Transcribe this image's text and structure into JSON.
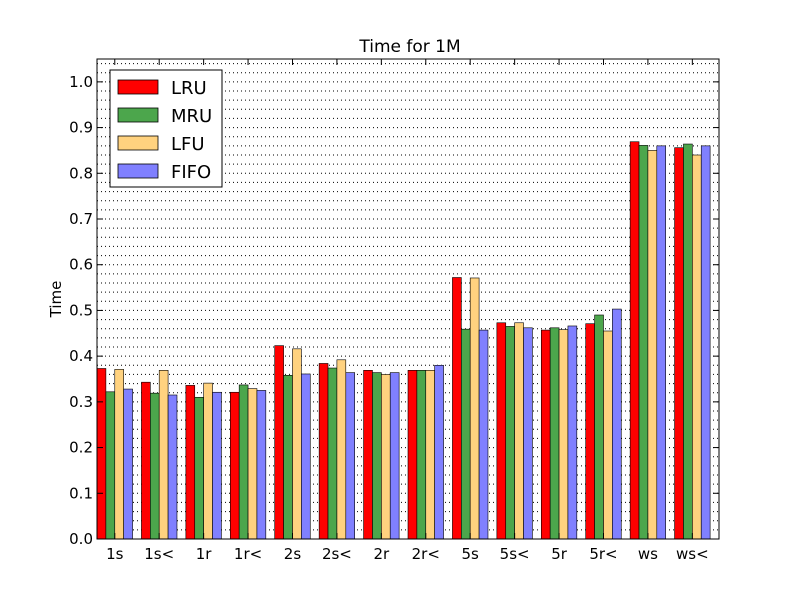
{
  "chart_data": {
    "type": "bar",
    "title": "Time for 1M",
    "xlabel": "",
    "ylabel": "Time",
    "ylim": [
      0.0,
      1.05
    ],
    "yticks": [
      "0.0",
      "0.1",
      "0.2",
      "0.3",
      "0.4",
      "0.5",
      "0.6",
      "0.7",
      "0.8",
      "0.9",
      "1.0"
    ],
    "grid": "horizontal dotted",
    "legend_position": "top-left",
    "categories": [
      "1s",
      "1s<",
      "1r",
      "1r<",
      "2s",
      "2s<",
      "2r",
      "2r<",
      "5s",
      "5s<",
      "5r",
      "5r<",
      "ws",
      "ws<"
    ],
    "series": [
      {
        "name": "LRU",
        "color": "#ff0000",
        "values": [
          0.373,
          0.343,
          0.336,
          0.321,
          0.423,
          0.384,
          0.369,
          0.369,
          0.572,
          0.473,
          0.457,
          0.471,
          0.869,
          0.856
        ]
      },
      {
        "name": "MRU",
        "color": "#4ca64c",
        "values": [
          0.322,
          0.319,
          0.31,
          0.337,
          0.358,
          0.374,
          0.364,
          0.369,
          0.459,
          0.465,
          0.462,
          0.49,
          0.861,
          0.864
        ]
      },
      {
        "name": "LFU",
        "color": "#ffd27f",
        "values": [
          0.371,
          0.369,
          0.341,
          0.329,
          0.416,
          0.392,
          0.36,
          0.369,
          0.571,
          0.473,
          0.458,
          0.455,
          0.85,
          0.84
        ]
      },
      {
        "name": "FIFO",
        "color": "#8080ff",
        "values": [
          0.328,
          0.315,
          0.321,
          0.325,
          0.361,
          0.364,
          0.364,
          0.38,
          0.457,
          0.462,
          0.466,
          0.503,
          0.86,
          0.86
        ]
      }
    ]
  }
}
